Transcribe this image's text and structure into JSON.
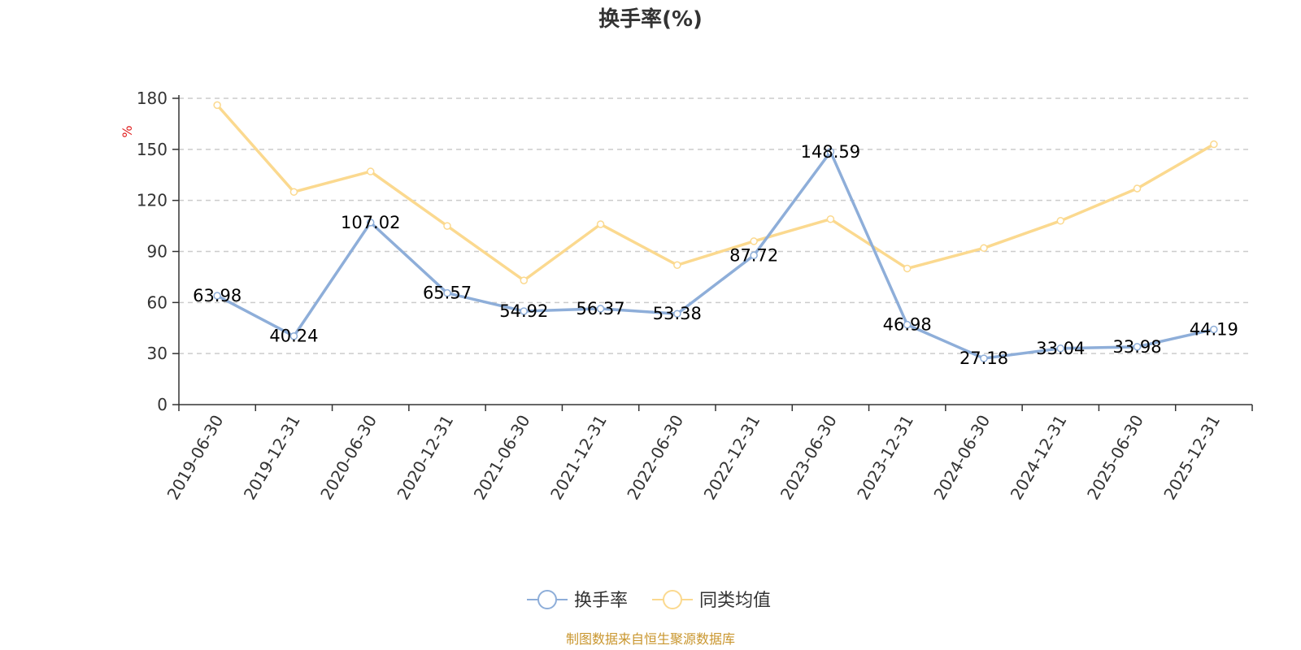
{
  "chart_data": {
    "type": "line",
    "title": "换手率(%)",
    "ylabel": "%",
    "xlabel": "",
    "ylim": [
      0,
      180
    ],
    "yticks": [
      0,
      30,
      60,
      90,
      120,
      150,
      180
    ],
    "grid": true,
    "legend_position": "bottom-center",
    "categories": [
      "2019-06-30",
      "2019-12-31",
      "2020-06-30",
      "2020-12-31",
      "2021-06-30",
      "2021-12-31",
      "2022-06-30",
      "2022-12-31",
      "2023-06-30",
      "2023-12-31",
      "2024-06-30",
      "2024-12-31",
      "2025-06-30",
      "2025-12-31"
    ],
    "series": [
      {
        "name": "换手率",
        "color": "#8eaed9",
        "show_labels": true,
        "values": [
          63.98,
          40.24,
          107.02,
          65.57,
          54.92,
          56.37,
          53.38,
          87.72,
          148.59,
          46.98,
          27.18,
          33.04,
          33.98,
          44.19
        ]
      },
      {
        "name": "同类均值",
        "color": "#fbd98f",
        "show_labels": false,
        "values": [
          176,
          125,
          137,
          105,
          73,
          106,
          82,
          96,
          109,
          80,
          92,
          108,
          127,
          153
        ]
      }
    ],
    "source": "制图数据来自恒生聚源数据库",
    "source_color": "#c9962e",
    "unit_color": "#e01e1e"
  }
}
